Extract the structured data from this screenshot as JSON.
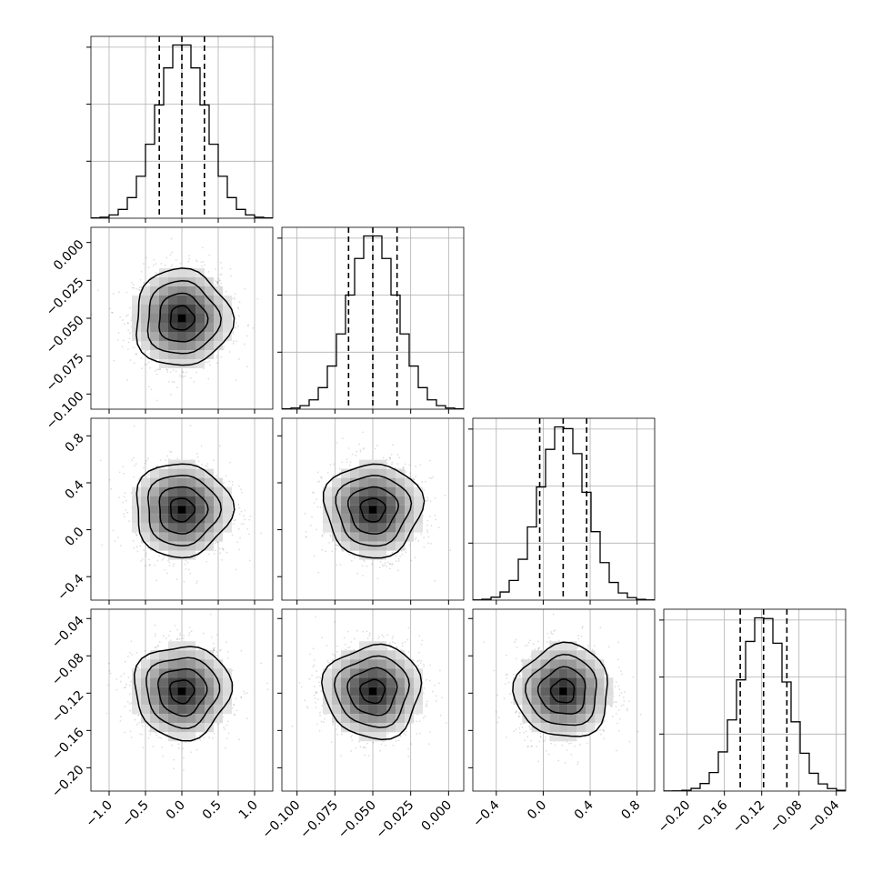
{
  "chart_data": {
    "type": "corner",
    "grid": true,
    "parameters": [
      {
        "range": [
          -1.25,
          1.25
        ],
        "ticks": [
          -1.0,
          -0.5,
          0.0,
          0.5,
          1.0
        ],
        "tick_labels": [
          "−1.0",
          "−0.5",
          "0.0",
          "0.5",
          "1.0"
        ],
        "mean": 0.0,
        "std": 0.33,
        "quantiles": [
          -0.31,
          0.0,
          0.31
        ]
      },
      {
        "range": [
          -0.11,
          0.01
        ],
        "ticks": [
          -0.1,
          -0.075,
          -0.05,
          -0.025,
          0.0
        ],
        "tick_labels": [
          "−0.100",
          "−0.075",
          "−0.050",
          "−0.025",
          "0.000"
        ],
        "mean": -0.05,
        "std": 0.016,
        "quantiles": [
          -0.066,
          -0.05,
          -0.034
        ]
      },
      {
        "range": [
          -0.6,
          0.95
        ],
        "ticks": [
          -0.4,
          0.0,
          0.4,
          0.8
        ],
        "tick_labels": [
          "−0.4",
          "0.0",
          "0.4",
          "0.8"
        ],
        "mean": 0.17,
        "std": 0.2,
        "quantiles": [
          -0.03,
          0.17,
          0.37
        ]
      },
      {
        "range": [
          -0.225,
          -0.03
        ],
        "ticks": [
          -0.2,
          -0.16,
          -0.12,
          -0.08,
          -0.04
        ],
        "tick_labels": [
          "−0.20",
          "−0.16",
          "−0.12",
          "−0.08",
          "−0.04"
        ],
        "mean": -0.118,
        "std": 0.025,
        "quantiles": [
          -0.143,
          -0.118,
          -0.093
        ]
      }
    ]
  }
}
